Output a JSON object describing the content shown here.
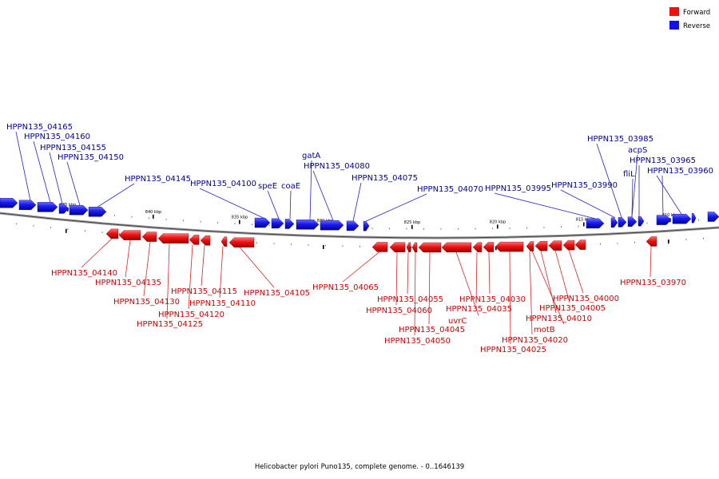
{
  "legend": {
    "forward_label": "Forward",
    "reverse_label": "Reverse",
    "forward_color": "#ee1111",
    "reverse_color": "#1111ee"
  },
  "caption": "Helicobacter pylori Puno135, complete genome. - 0..1646139",
  "colors": {
    "forward_label": "#cc0000",
    "reverse_label": "#000099",
    "line_forward": "#dd2222",
    "line_reverse": "#2222cc"
  },
  "axis_ticks": [
    "845 kbp",
    "840 kbp",
    "835 kbp",
    "830 kbp",
    "825 kbp",
    "820 kbp",
    "815 kbp",
    "810 kbp"
  ],
  "reverse_genes": [
    "HPPN135_04165",
    "HPPN135_04160",
    "HPPN135_04155",
    "HPPN135_04150",
    "HPPN135_04145",
    "HPPN135_04100",
    "speE",
    "coaE",
    "gatA",
    "HPPN135_04080",
    "HPPN135_04075",
    "HPPN135_04070",
    "HPPN135_03995",
    "HPPN135_03990",
    "HPPN135_03985",
    "acpS",
    "fliL",
    "HPPN135_03965",
    "HPPN135_03960"
  ],
  "forward_genes": [
    "HPPN135_04140",
    "HPPN135_04135",
    "HPPN135_04130",
    "HPPN135_04125",
    "HPPN135_04120",
    "HPPN135_04115",
    "HPPN135_04110",
    "HPPN135_04105",
    "HPPN135_04065",
    "HPPN135_04060",
    "HPPN135_04055",
    "HPPN135_04050",
    "HPPN135_04045",
    "uvrC",
    "HPPN135_04035",
    "HPPN135_04030",
    "HPPN135_04025",
    "HPPN135_04020",
    "motB",
    "HPPN135_04010",
    "HPPN135_04005",
    "HPPN135_04000",
    "HPPN135_03970"
  ]
}
